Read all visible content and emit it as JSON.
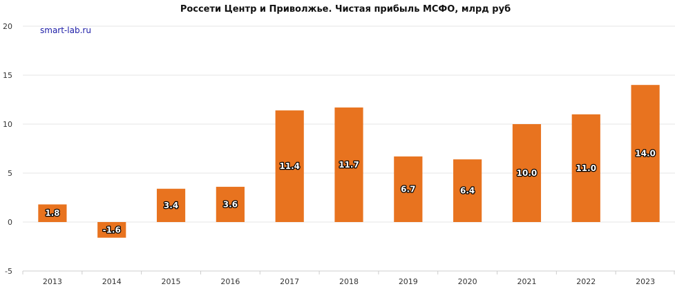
{
  "chart_data": {
    "type": "bar",
    "title": "Россети Центр и Приволжье. Чистая прибыль МСФО, млрд руб",
    "watermark": "smart-lab.ru",
    "categories": [
      "2013",
      "2014",
      "2015",
      "2016",
      "2017",
      "2018",
      "2019",
      "2020",
      "2021",
      "2022",
      "2023"
    ],
    "values": [
      1.8,
      -1.6,
      3.4,
      3.6,
      11.4,
      11.7,
      6.7,
      6.4,
      10.0,
      11.0,
      14.0
    ],
    "value_labels": [
      "1.8",
      "-1.6",
      "3.4",
      "3.6",
      "11.4",
      "11.7",
      "6.7",
      "6.4",
      "10.0",
      "11.0",
      "14.0"
    ],
    "ylim": [
      -5,
      20
    ],
    "yticks": [
      "-5",
      "0",
      "5",
      "10",
      "15",
      "20"
    ],
    "grid": true,
    "xlabel": "",
    "ylabel": "",
    "colors": {
      "bar": "#e8731f",
      "grid": "#e6e6e6",
      "axis": "#cccccc",
      "label_text": "#ffffff"
    }
  }
}
